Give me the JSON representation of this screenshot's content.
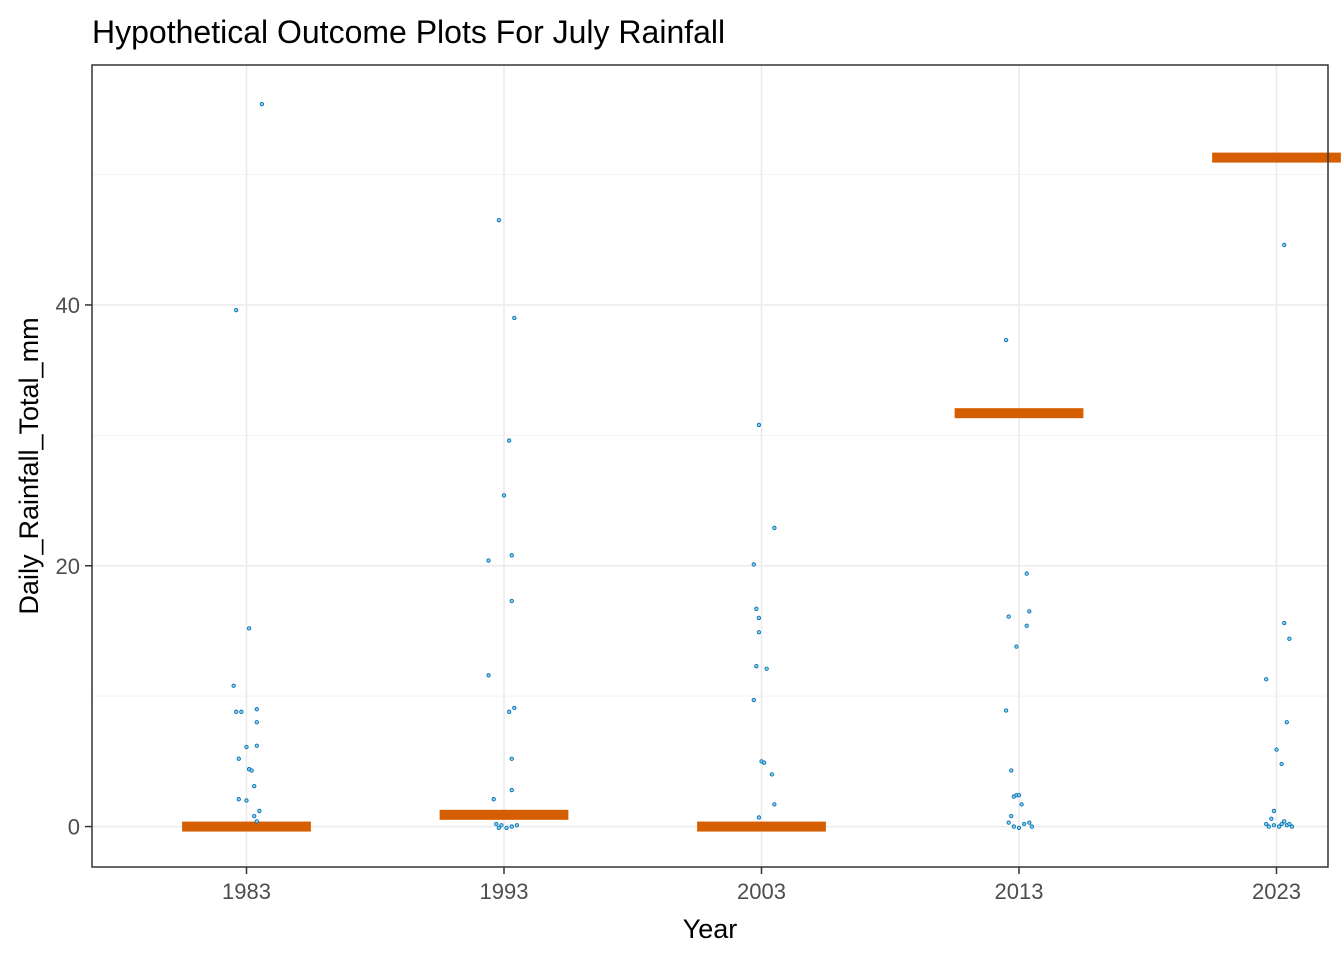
{
  "chart_data": {
    "type": "scatter",
    "title": "Hypothetical Outcome Plots For July Rainfall",
    "xlabel": "Year",
    "ylabel": "Daily_Rainfall_Total_mm",
    "categories": [
      "1983",
      "1993",
      "2003",
      "2013",
      "2023"
    ],
    "ylim": [
      -3.1,
      58.4
    ],
    "yticks": [
      0,
      20,
      40
    ],
    "grid": true,
    "legend": "none",
    "colors": {
      "points": "#0072B2",
      "bars": "#D55E00"
    },
    "series": [
      {
        "category": "1983",
        "mean_bar": 0,
        "points": [
          {
            "dx": 0.06,
            "y": 55.4
          },
          {
            "dx": -0.04,
            "y": 39.6
          },
          {
            "dx": 0.01,
            "y": 15.2
          },
          {
            "dx": -0.05,
            "y": 10.8
          },
          {
            "dx": -0.04,
            "y": 8.8
          },
          {
            "dx": -0.02,
            "y": 8.8
          },
          {
            "dx": 0.04,
            "y": 9.0
          },
          {
            "dx": 0.04,
            "y": 8.0
          },
          {
            "dx": 0.0,
            "y": 6.1
          },
          {
            "dx": 0.04,
            "y": 6.2
          },
          {
            "dx": -0.03,
            "y": 5.2
          },
          {
            "dx": 0.01,
            "y": 4.4
          },
          {
            "dx": 0.02,
            "y": 4.3
          },
          {
            "dx": 0.03,
            "y": 3.1
          },
          {
            "dx": -0.03,
            "y": 2.1
          },
          {
            "dx": 0.0,
            "y": 2.0
          },
          {
            "dx": 0.05,
            "y": 1.2
          },
          {
            "dx": 0.03,
            "y": 0.8
          },
          {
            "dx": 0.04,
            "y": 0.4
          }
        ]
      },
      {
        "category": "1993",
        "mean_bar": 0.9,
        "points": [
          {
            "dx": -0.02,
            "y": 46.5
          },
          {
            "dx": 0.04,
            "y": 39.0
          },
          {
            "dx": 0.02,
            "y": 29.6
          },
          {
            "dx": 0.0,
            "y": 25.4
          },
          {
            "dx": 0.03,
            "y": 20.8
          },
          {
            "dx": -0.06,
            "y": 20.4
          },
          {
            "dx": 0.03,
            "y": 17.3
          },
          {
            "dx": -0.06,
            "y": 11.6
          },
          {
            "dx": 0.04,
            "y": 9.1
          },
          {
            "dx": 0.02,
            "y": 8.8
          },
          {
            "dx": 0.03,
            "y": 5.2
          },
          {
            "dx": 0.03,
            "y": 2.8
          },
          {
            "dx": -0.04,
            "y": 2.1
          },
          {
            "dx": -0.03,
            "y": 0.2
          },
          {
            "dx": -0.01,
            "y": 0.1
          },
          {
            "dx": 0.01,
            "y": -0.1
          },
          {
            "dx": 0.03,
            "y": 0.0
          },
          {
            "dx": 0.05,
            "y": 0.1
          },
          {
            "dx": -0.02,
            "y": -0.1
          }
        ]
      },
      {
        "category": "2003",
        "mean_bar": 0,
        "points": [
          {
            "dx": -0.01,
            "y": 30.8
          },
          {
            "dx": 0.05,
            "y": 22.9
          },
          {
            "dx": -0.03,
            "y": 20.1
          },
          {
            "dx": -0.02,
            "y": 16.7
          },
          {
            "dx": -0.01,
            "y": 16.0
          },
          {
            "dx": -0.01,
            "y": 14.9
          },
          {
            "dx": -0.02,
            "y": 12.3
          },
          {
            "dx": 0.02,
            "y": 12.1
          },
          {
            "dx": -0.03,
            "y": 9.7
          },
          {
            "dx": 0.0,
            "y": 5.0
          },
          {
            "dx": 0.01,
            "y": 4.9
          },
          {
            "dx": 0.04,
            "y": 4.0
          },
          {
            "dx": 0.05,
            "y": 1.7
          },
          {
            "dx": -0.01,
            "y": 0.7
          }
        ]
      },
      {
        "category": "2013",
        "mean_bar": 31.7,
        "points": [
          {
            "dx": -0.05,
            "y": 37.3
          },
          {
            "dx": 0.03,
            "y": 19.4
          },
          {
            "dx": -0.04,
            "y": 16.1
          },
          {
            "dx": 0.04,
            "y": 16.5
          },
          {
            "dx": 0.03,
            "y": 15.4
          },
          {
            "dx": -0.01,
            "y": 13.8
          },
          {
            "dx": -0.05,
            "y": 8.9
          },
          {
            "dx": -0.03,
            "y": 4.3
          },
          {
            "dx": -0.02,
            "y": 2.3
          },
          {
            "dx": -0.01,
            "y": 2.4
          },
          {
            "dx": 0.0,
            "y": 2.4
          },
          {
            "dx": 0.01,
            "y": 1.7
          },
          {
            "dx": -0.03,
            "y": 0.8
          },
          {
            "dx": -0.04,
            "y": 0.3
          },
          {
            "dx": -0.02,
            "y": 0.0
          },
          {
            "dx": 0.0,
            "y": -0.1
          },
          {
            "dx": 0.02,
            "y": 0.2
          },
          {
            "dx": 0.04,
            "y": 0.3
          },
          {
            "dx": 0.05,
            "y": 0.0
          }
        ]
      },
      {
        "category": "2023",
        "mean_bar": 51.3,
        "points": [
          {
            "dx": 0.03,
            "y": 44.6
          },
          {
            "dx": 0.03,
            "y": 15.6
          },
          {
            "dx": 0.05,
            "y": 14.4
          },
          {
            "dx": -0.04,
            "y": 11.3
          },
          {
            "dx": 0.04,
            "y": 8.0
          },
          {
            "dx": 0.0,
            "y": 5.9
          },
          {
            "dx": 0.02,
            "y": 4.8
          },
          {
            "dx": -0.01,
            "y": 1.2
          },
          {
            "dx": -0.02,
            "y": 0.6
          },
          {
            "dx": -0.04,
            "y": 0.2
          },
          {
            "dx": -0.03,
            "y": 0.0
          },
          {
            "dx": -0.01,
            "y": 0.1
          },
          {
            "dx": 0.01,
            "y": 0.0
          },
          {
            "dx": 0.02,
            "y": 0.2
          },
          {
            "dx": 0.03,
            "y": 0.4
          },
          {
            "dx": 0.04,
            "y": 0.1
          },
          {
            "dx": 0.05,
            "y": 0.2
          },
          {
            "dx": 0.06,
            "y": 0.0
          }
        ]
      }
    ]
  }
}
